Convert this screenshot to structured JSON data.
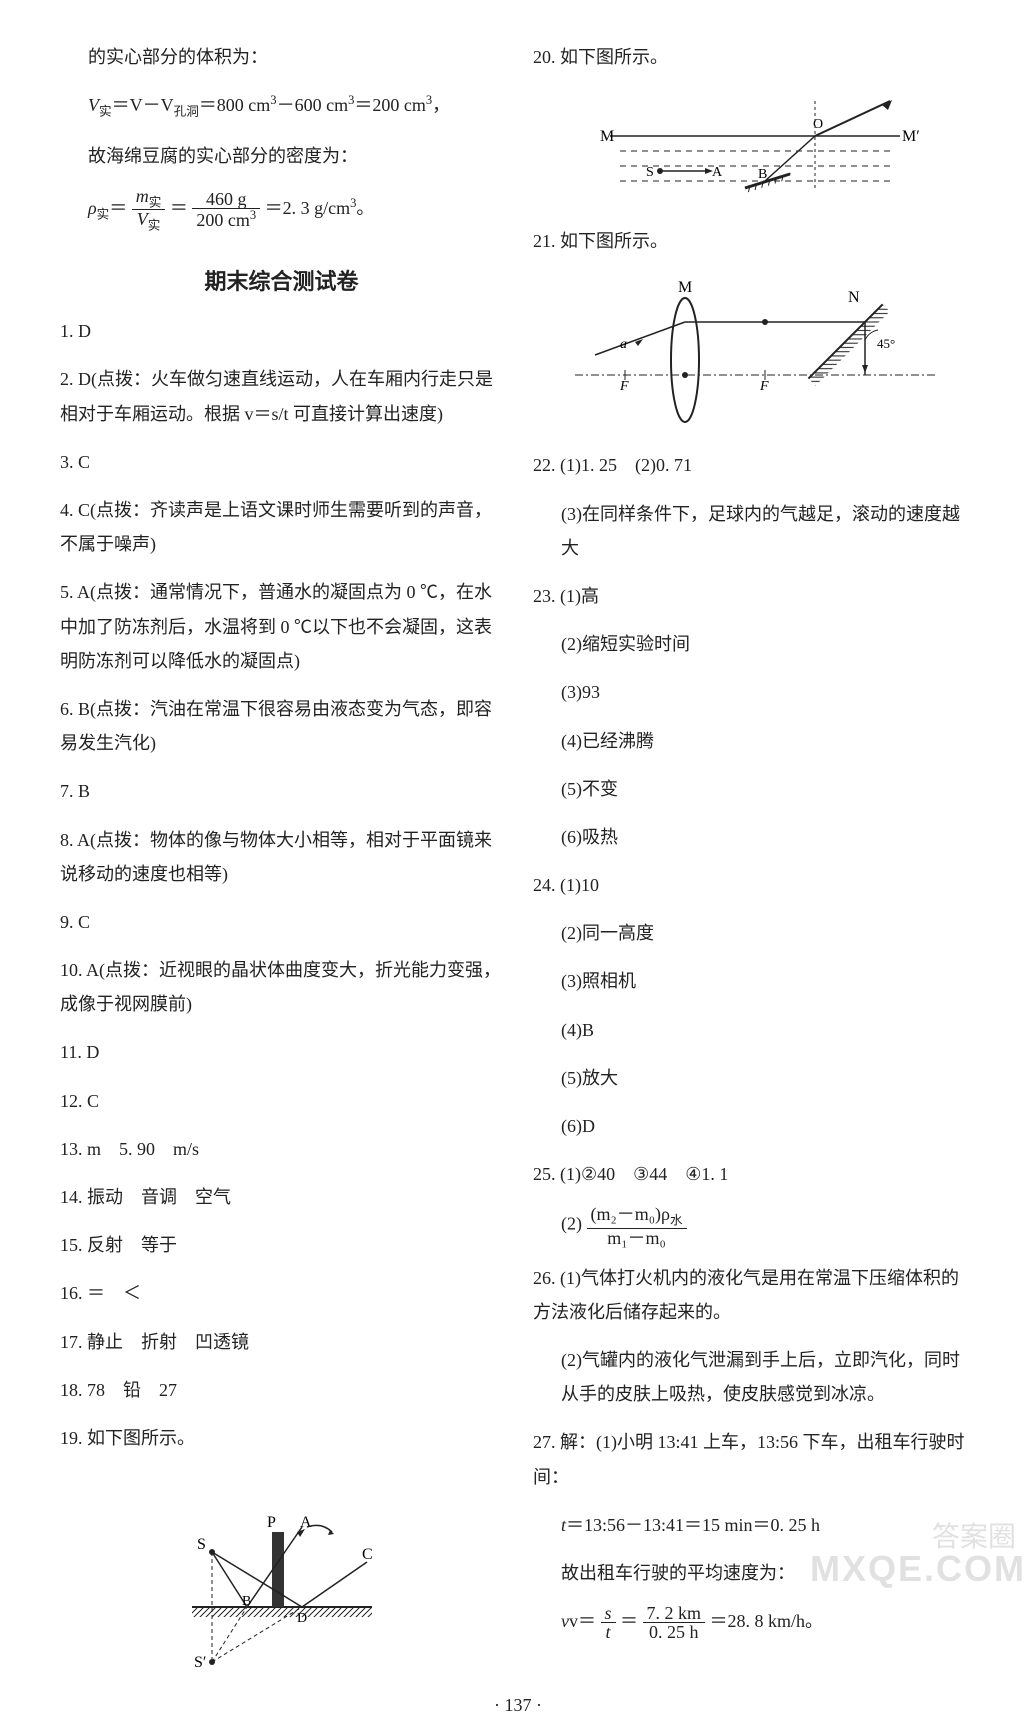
{
  "page": {
    "number": "· 137 ·"
  },
  "left": {
    "top": {
      "l1": "的实心部分的体积为：",
      "l2a": "V",
      "l2sub1": "实",
      "l2b": "＝V－V",
      "l2sub2": "孔洞",
      "l2c": "＝800 cm",
      "l2sup1": "3",
      "l2d": "－600 cm",
      "l2sup2": "3",
      "l2e": "＝200 cm",
      "l2sup3": "3",
      "l2f": "，",
      "l3": "故海绵豆腐的实心部分的密度为：",
      "l4a": "ρ",
      "l4sub1": "实",
      "l4b": "＝",
      "l4num1": "m",
      "l4numsub": "实",
      "l4den1": "V",
      "l4densub": "实",
      "l4c": "＝",
      "l4num2": "460 g",
      "l4den2": "200 cm",
      "l4densup": "3",
      "l4d": "＝2. 3 g/cm",
      "l4sup": "3",
      "l4e": "。"
    },
    "sectionTitle": "期末综合测试卷",
    "items": [
      {
        "n": "1.",
        "t": "D"
      },
      {
        "n": "2.",
        "t": "D(点拨：火车做匀速直线运动，人在车厢内行走只是相对于车厢运动。根据 v＝s/t 可直接计算出速度)"
      },
      {
        "n": "3.",
        "t": "C"
      },
      {
        "n": "4.",
        "t": "C(点拨：齐读声是上语文课时师生需要听到的声音，不属于噪声)"
      },
      {
        "n": "5.",
        "t": "A(点拨：通常情况下，普通水的凝固点为 0 ℃，在水中加了防冻剂后，水温将到 0 ℃以下也不会凝固，这表明防冻剂可以降低水的凝固点)"
      },
      {
        "n": "6.",
        "t": "B(点拨：汽油在常温下很容易由液态变为气态，即容易发生汽化)"
      },
      {
        "n": "7.",
        "t": "B"
      },
      {
        "n": "8.",
        "t": "A(点拨：物体的像与物体大小相等，相对于平面镜来说移动的速度也相等)"
      },
      {
        "n": "9.",
        "t": "C"
      },
      {
        "n": "10.",
        "t": "A(点拨：近视眼的晶状体曲度变大，折光能力变强，成像于视网膜前)"
      },
      {
        "n": "11.",
        "t": "D"
      },
      {
        "n": "12.",
        "t": "C"
      },
      {
        "n": "13.",
        "t": "m　5. 90　m/s"
      },
      {
        "n": "14.",
        "t": "振动　音调　空气"
      },
      {
        "n": "15.",
        "t": "反射　等于"
      },
      {
        "n": "16.",
        "t": "＝　＜"
      },
      {
        "n": "17.",
        "t": "静止　折射　凹透镜"
      },
      {
        "n": "18.",
        "t": "78　铅　27"
      },
      {
        "n": "19.",
        "t": "如下图所示。"
      }
    ],
    "diagram19": {
      "labels": {
        "S": "S",
        "Sp": "S′",
        "P": "P",
        "A": "A",
        "B": "B",
        "C": "C",
        "D": "D"
      },
      "colors": {
        "line": "#222",
        "hatch": "#222"
      }
    }
  },
  "right": {
    "items20": {
      "n": "20.",
      "t": "如下图所示。"
    },
    "diagram20": {
      "labels": {
        "M": "M",
        "Mp": "M′",
        "O": "O",
        "S": "S",
        "A": "A",
        "B": "B"
      },
      "colors": {
        "line": "#222"
      }
    },
    "items21": {
      "n": "21.",
      "t": "如下图所示。"
    },
    "diagram21": {
      "labels": {
        "M": "M",
        "N": "N",
        "F": "F",
        "Fp": "F",
        "a": "a",
        "angle": "45°"
      },
      "colors": {
        "line": "#222"
      }
    },
    "item22": {
      "n": "22.",
      "p1": "(1)1. 25　(2)0. 71",
      "p3": "(3)在同样条件下，足球内的气越足，滚动的速度越大"
    },
    "item23": {
      "n": "23.",
      "parts": [
        "(1)高",
        "(2)缩短实验时间",
        "(3)93",
        "(4)已经沸腾",
        "(5)不变",
        "(6)吸热"
      ]
    },
    "item24": {
      "n": "24.",
      "parts": [
        "(1)10",
        "(2)同一高度",
        "(3)照相机",
        "(4)B",
        "(5)放大",
        "(6)D"
      ]
    },
    "item25": {
      "n": "25.",
      "p1": "(1)②40　③44　④1. 1",
      "p2a": "(2)",
      "frac": {
        "num": "(m₂－m₀)ρ",
        "numsub": "水",
        "den": "m₁－m₀"
      }
    },
    "item26": {
      "n": "26.",
      "p1": "(1)气体打火机内的液化气是用在常温下压缩体积的方法液化后储存起来的。",
      "p2": "(2)气罐内的液化气泄漏到手上后，立即汽化，同时从手的皮肤上吸热，使皮肤感觉到冰凉。"
    },
    "item27": {
      "n": "27.",
      "p1": "解：(1)小明 13:41 上车，13:56 下车，出租车行驶时间：",
      "p2": "t＝13:56－13:41＝15 min＝0. 25 h",
      "p3": "故出租车行驶的平均速度为：",
      "p4a": "v＝",
      "fracnum": "s",
      "fracden": "t",
      "p4b": "＝",
      "frac2num": "7. 2 km",
      "frac2den": "0. 25 h",
      "p4c": "＝28. 8 km/h。"
    }
  },
  "watermark": {
    "brand": "答案圈",
    "url": "MXQE.COM"
  }
}
